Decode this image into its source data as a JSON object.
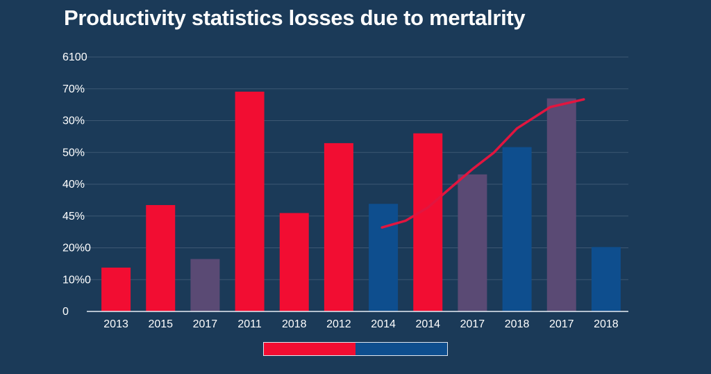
{
  "chart_data": {
    "type": "bar",
    "title": "Productivity statistics losses due to mertalrity",
    "xlabel": "",
    "ylabel": "",
    "y_tick_labels": [
      "0",
      "10%0",
      "20%0",
      "45%",
      "40%",
      "50%",
      "30%",
      "70%",
      "6100"
    ],
    "categories": [
      "2013",
      "2015",
      "2017",
      "2011",
      "2018",
      "2012",
      "2014",
      "2014",
      "2017",
      "2018",
      "2017",
      "2018"
    ],
    "values": [
      1.43,
      3.47,
      1.71,
      7.17,
      3.21,
      5.49,
      3.51,
      5.81,
      4.47,
      5.36,
      6.95,
      2.1
    ],
    "bar_colors": [
      "#f20d32",
      "#f20d32",
      "#5a4a74",
      "#f20d32",
      "#f20d32",
      "#f20d32",
      "#0e4e8e",
      "#f20d32",
      "#5a4a74",
      "#0e4e8e",
      "#5a4a74",
      "#0e4e8e"
    ],
    "line_series": {
      "name": "trend",
      "color": "#e2153f",
      "points": [
        {
          "x": 6.47,
          "y": 2.74
        },
        {
          "x": 7.0,
          "y": 2.96
        },
        {
          "x": 7.5,
          "y": 3.39
        },
        {
          "x": 8.04,
          "y": 4.07
        },
        {
          "x": 8.5,
          "y": 4.64
        },
        {
          "x": 8.98,
          "y": 5.18
        },
        {
          "x": 9.5,
          "y": 5.97
        },
        {
          "x": 10.25,
          "y": 6.67
        },
        {
          "x": 11.0,
          "y": 6.92
        }
      ]
    },
    "ylim": [
      0,
      8.3
    ],
    "grid": true,
    "legend": {
      "position": "bottom-center",
      "entries": [
        {
          "name": "",
          "color": "#f20d32"
        },
        {
          "name": "",
          "color": "#0e4e8e"
        }
      ]
    }
  }
}
